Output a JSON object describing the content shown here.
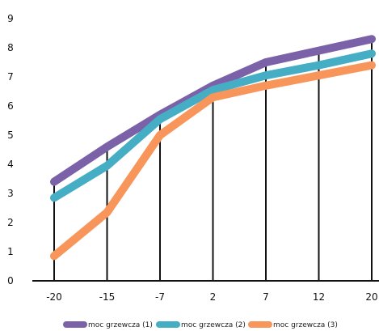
{
  "chart_data": {
    "type": "line",
    "title": "",
    "xlabel": "",
    "ylabel": "",
    "categories": [
      "-20",
      "-15",
      "-7",
      "2",
      "7",
      "12",
      "20"
    ],
    "ylim": [
      0,
      9
    ],
    "yticks": [
      "0",
      "1",
      "2",
      "3",
      "4",
      "5",
      "6",
      "7",
      "8",
      "9"
    ],
    "grid": "vertical drop lines at each category",
    "legend": "bottom",
    "series": [
      {
        "name": "moc grzewcza (1)",
        "color": "#7b62a8",
        "values": [
          3.4,
          4.6,
          5.7,
          6.7,
          7.5,
          7.9,
          8.3
        ]
      },
      {
        "name": "moc grzewcza (2)",
        "color": "#45adc4",
        "values": [
          2.85,
          3.95,
          5.55,
          6.55,
          7.05,
          7.4,
          7.8
        ]
      },
      {
        "name": "moc grzewcza (3)",
        "color": "#f7955a",
        "values": [
          0.85,
          2.35,
          5.0,
          6.3,
          6.7,
          7.05,
          7.4
        ]
      }
    ]
  }
}
